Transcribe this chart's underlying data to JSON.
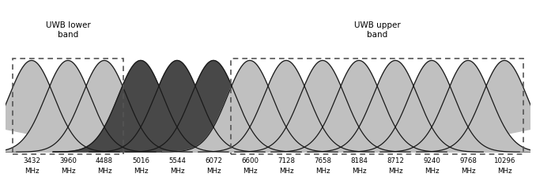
{
  "frequencies": [
    3432,
    3960,
    4488,
    5016,
    5544,
    6072,
    6600,
    7128,
    7658,
    8184,
    8712,
    9240,
    9768,
    10296
  ],
  "colors": [
    "#c0c0c0",
    "#c0c0c0",
    "#c0c0c0",
    "#484848",
    "#484848",
    "#484848",
    "#c0c0c0",
    "#c0c0c0",
    "#c0c0c0",
    "#c0c0c0",
    "#c0c0c0",
    "#c0c0c0",
    "#c0c0c0",
    "#c0c0c0"
  ],
  "edge_color": "#1a1a1a",
  "lower_band_label": "UWB lower\nband",
  "upper_band_label": "UWB upper\nband",
  "lower_band_indices": [
    0,
    2
  ],
  "upper_band_indices": [
    6,
    13
  ],
  "bg_color": "#ffffff",
  "sigma_factor": 0.62
}
